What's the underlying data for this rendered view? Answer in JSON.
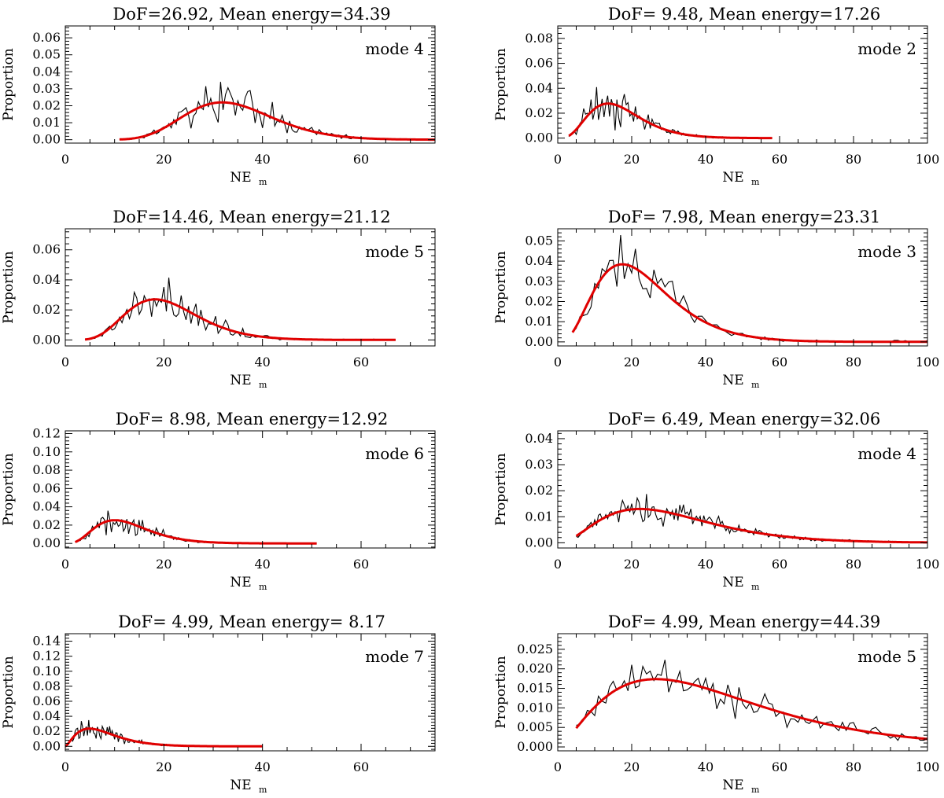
{
  "chart_data": [
    {
      "type": "line",
      "title": "DoF=26.92,  Mean energy=34.39",
      "dof": 26.92,
      "mean": 34.39,
      "label": "mode 4",
      "xlabel": "NE",
      "xlabel_sub": "m",
      "ylabel": "Proportion",
      "xlim": [
        0,
        75
      ],
      "ylim": [
        -0.002,
        0.067
      ],
      "xticks": [
        0,
        20,
        40,
        60
      ],
      "yticks": [
        "0.00",
        "0.01",
        "0.02",
        "0.03",
        "0.04",
        "0.05",
        "0.06"
      ],
      "ytick_values": [
        0,
        0.01,
        0.02,
        0.03,
        0.04,
        0.05,
        0.06
      ],
      "hist_range": [
        11,
        75
      ],
      "hist_step": 0.5,
      "noise": 0.28,
      "seed": 11,
      "series": [
        {
          "name": "histogram",
          "color": "#000000"
        },
        {
          "name": "fit",
          "color": "#e00000"
        }
      ]
    },
    {
      "type": "line",
      "title": "DoF= 9.48,  Mean energy=17.26",
      "dof": 9.48,
      "mean": 17.26,
      "label": "mode 2",
      "xlabel": "NE",
      "xlabel_sub": "m",
      "ylabel": "Proportion",
      "xlim": [
        0,
        100
      ],
      "ylim": [
        -0.004,
        0.09
      ],
      "xticks": [
        0,
        20,
        40,
        60,
        80,
        100
      ],
      "yticks": [
        "0.00",
        "0.02",
        "0.04",
        "0.06",
        "0.08"
      ],
      "ytick_values": [
        0,
        0.02,
        0.04,
        0.06,
        0.08
      ],
      "hist_range": [
        3,
        58
      ],
      "hist_step": 0.5,
      "noise": 0.3,
      "seed": 12,
      "series": [
        {
          "name": "histogram",
          "color": "#000000"
        },
        {
          "name": "fit",
          "color": "#e00000"
        }
      ]
    },
    {
      "type": "line",
      "title": "DoF=14.46,  Mean energy=21.12",
      "dof": 14.46,
      "mean": 21.12,
      "label": "mode 5",
      "xlabel": "NE",
      "xlabel_sub": "m",
      "ylabel": "Proportion",
      "xlim": [
        0,
        75
      ],
      "ylim": [
        -0.004,
        0.074
      ],
      "xticks": [
        0,
        20,
        40,
        60
      ],
      "yticks": [
        "0.00",
        "0.02",
        "0.04",
        "0.06"
      ],
      "ytick_values": [
        0,
        0.02,
        0.04,
        0.06
      ],
      "hist_range": [
        4,
        67
      ],
      "hist_step": 0.5,
      "noise": 0.3,
      "seed": 13,
      "series": [
        {
          "name": "histogram",
          "color": "#000000"
        },
        {
          "name": "fit",
          "color": "#e00000"
        }
      ]
    },
    {
      "type": "line",
      "title": "DoF= 7.98,  Mean energy=23.31",
      "dof": 7.98,
      "mean": 23.31,
      "label": "mode 3",
      "xlabel": "NE",
      "xlabel_sub": "m",
      "ylabel": "Proportion",
      "xlim": [
        0,
        100
      ],
      "ylim": [
        -0.002,
        0.056
      ],
      "xticks": [
        0,
        20,
        40,
        60,
        80,
        100
      ],
      "yticks": [
        "0.00",
        "0.01",
        "0.02",
        "0.03",
        "0.04",
        "0.05"
      ],
      "ytick_values": [
        0,
        0.01,
        0.02,
        0.03,
        0.04,
        0.05
      ],
      "hist_range": [
        4,
        100
      ],
      "hist_step": 1,
      "noise": 0.18,
      "seed": 14,
      "series": [
        {
          "name": "histogram",
          "color": "#000000"
        },
        {
          "name": "fit",
          "color": "#e00000"
        }
      ]
    },
    {
      "type": "line",
      "title": "DoF= 8.98,  Mean energy=12.92",
      "dof": 8.98,
      "mean": 12.92,
      "label": "mode 6",
      "xlabel": "NE",
      "xlabel_sub": "m",
      "ylabel": "Proportion",
      "xlim": [
        0,
        75
      ],
      "ylim": [
        -0.005,
        0.123
      ],
      "xticks": [
        0,
        20,
        40,
        60
      ],
      "yticks": [
        "0.00",
        "0.02",
        "0.04",
        "0.06",
        "0.08",
        "0.10",
        "0.12"
      ],
      "ytick_values": [
        0,
        0.02,
        0.04,
        0.06,
        0.08,
        0.1,
        0.12
      ],
      "hist_range": [
        2,
        51
      ],
      "hist_step": 0.35,
      "noise": 0.3,
      "seed": 15,
      "series": [
        {
          "name": "histogram",
          "color": "#000000"
        },
        {
          "name": "fit",
          "color": "#e00000"
        }
      ]
    },
    {
      "type": "line",
      "title": "DoF= 6.49,  Mean energy=32.06",
      "dof": 6.49,
      "mean": 32.06,
      "label": "mode 4",
      "xlabel": "NE",
      "xlabel_sub": "m",
      "ylabel": "Proportion",
      "xlim": [
        0,
        100
      ],
      "ylim": [
        -0.002,
        0.043
      ],
      "xticks": [
        0,
        20,
        40,
        60,
        80,
        100
      ],
      "yticks": [
        "0.00",
        "0.01",
        "0.02",
        "0.03",
        "0.04"
      ],
      "ytick_values": [
        0,
        0.01,
        0.02,
        0.03,
        0.04
      ],
      "hist_range": [
        5,
        100
      ],
      "hist_step": 0.5,
      "noise": 0.2,
      "seed": 16,
      "series": [
        {
          "name": "histogram",
          "color": "#000000"
        },
        {
          "name": "fit",
          "color": "#e00000"
        }
      ]
    },
    {
      "type": "line",
      "title": "DoF= 4.99,  Mean energy= 8.17",
      "dof": 4.99,
      "mean": 8.17,
      "label": "mode 7",
      "xlabel": "NE",
      "xlabel_sub": "m",
      "ylabel": "Proportion",
      "xlim": [
        0,
        75
      ],
      "ylim": [
        -0.006,
        0.15
      ],
      "xticks": [
        0,
        20,
        40,
        60
      ],
      "yticks": [
        "0.00",
        "0.02",
        "0.04",
        "0.06",
        "0.08",
        "0.10",
        "0.12",
        "0.14"
      ],
      "ytick_values": [
        0,
        0.02,
        0.04,
        0.06,
        0.08,
        0.1,
        0.12,
        0.14
      ],
      "hist_range": [
        0,
        40
      ],
      "hist_step": 0.25,
      "noise": 0.32,
      "seed": 17,
      "series": [
        {
          "name": "histogram",
          "color": "#000000"
        },
        {
          "name": "fit",
          "color": "#e00000"
        }
      ]
    },
    {
      "type": "line",
      "title": "DoF= 4.99,  Mean energy=44.39",
      "dof": 4.99,
      "mean": 44.39,
      "label": "mode 5",
      "xlabel": "NE",
      "xlabel_sub": "m",
      "ylabel": "Proportion",
      "xlim": [
        0,
        100
      ],
      "ylim": [
        -0.001,
        0.029
      ],
      "xticks": [
        0,
        20,
        40,
        60,
        80,
        100
      ],
      "yticks": [
        "0.000",
        "0.005",
        "0.010",
        "0.015",
        "0.020",
        "0.025"
      ],
      "ytick_values": [
        0,
        0.005,
        0.01,
        0.015,
        0.02,
        0.025
      ],
      "hist_range": [
        5,
        100
      ],
      "hist_step": 1,
      "noise": 0.16,
      "seed": 18,
      "series": [
        {
          "name": "histogram",
          "color": "#000000"
        },
        {
          "name": "fit",
          "color": "#e00000"
        }
      ]
    }
  ]
}
